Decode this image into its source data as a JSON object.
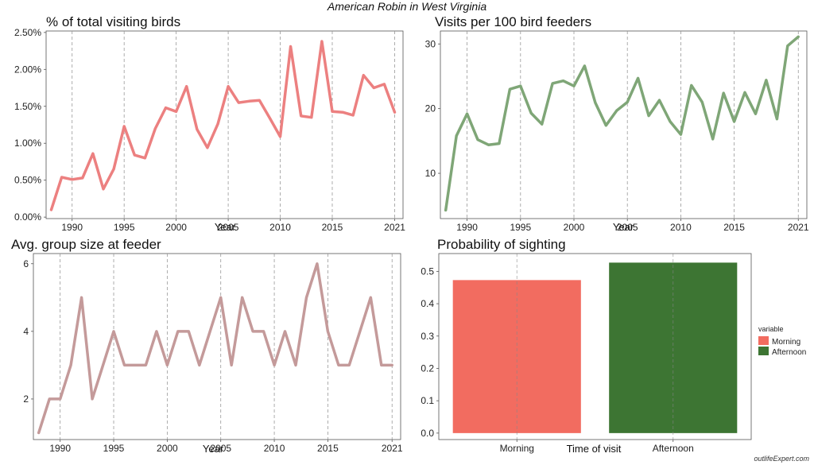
{
  "title": "American Robin in West Virginia",
  "watermark": "outlifeExpert.com",
  "chart_data": [
    {
      "type": "line",
      "title": "% of total visiting birds",
      "xlabel": "Year",
      "ylabel": "",
      "color": "#ec8080",
      "x": [
        1988,
        1989,
        1990,
        1991,
        1992,
        1993,
        1994,
        1995,
        1996,
        1997,
        1998,
        1999,
        2000,
        2001,
        2002,
        2003,
        2004,
        2005,
        2006,
        2007,
        2008,
        2009,
        2010,
        2011,
        2012,
        2013,
        2014,
        2015,
        2016,
        2017,
        2018,
        2019,
        2020,
        2021
      ],
      "y": [
        0.1,
        0.54,
        0.51,
        0.53,
        0.86,
        0.38,
        0.65,
        1.23,
        0.84,
        0.8,
        1.2,
        1.48,
        1.43,
        1.77,
        1.19,
        0.94,
        1.26,
        1.77,
        1.55,
        1.57,
        1.58,
        1.34,
        1.09,
        2.31,
        1.37,
        1.35,
        2.38,
        1.43,
        1.42,
        1.38,
        1.92,
        1.75,
        1.8,
        1.42
      ],
      "xlim": [
        1987.5,
        2021.8
      ],
      "ylim": [
        -0.02,
        2.52
      ],
      "xticks": [
        1990,
        1995,
        2000,
        2005,
        2010,
        2015,
        2021
      ],
      "yticks": [
        0,
        0.5,
        1.0,
        1.5,
        2.0,
        2.5
      ],
      "ytick_labels": [
        "0.00%",
        "0.50%",
        "1.00%",
        "1.50%",
        "2.00%",
        "2.50%"
      ],
      "grid": "vertical-dashed"
    },
    {
      "type": "line",
      "title": "Visits per 100 bird feeders",
      "xlabel": "Year",
      "ylabel": "",
      "color": "#7fa677",
      "x": [
        1988,
        1989,
        1990,
        1991,
        1992,
        1993,
        1994,
        1995,
        1996,
        1997,
        1998,
        1999,
        2000,
        2001,
        2002,
        2003,
        2004,
        2005,
        2006,
        2007,
        2008,
        2009,
        2010,
        2011,
        2012,
        2013,
        2014,
        2015,
        2016,
        2017,
        2018,
        2019,
        2020,
        2021
      ],
      "y": [
        4.3,
        15.8,
        19.2,
        15.2,
        14.4,
        14.6,
        23.0,
        23.5,
        19.3,
        17.6,
        23.9,
        24.3,
        23.5,
        26.6,
        20.9,
        17.4,
        19.7,
        21.0,
        24.7,
        18.9,
        21.3,
        18.0,
        16.0,
        23.6,
        21.0,
        15.3,
        22.4,
        18.0,
        22.5,
        19.2,
        24.4,
        18.4,
        29.7,
        31.1
      ],
      "xlim": [
        1987.5,
        2021.8
      ],
      "ylim": [
        3,
        32
      ],
      "xticks": [
        1990,
        1995,
        2000,
        2005,
        2010,
        2015,
        2021
      ],
      "yticks": [
        10,
        20,
        30
      ],
      "ytick_labels": [
        "10",
        "20",
        "30"
      ],
      "grid": "vertical-dashed"
    },
    {
      "type": "line",
      "title": "Avg. group size at feeder",
      "xlabel": "Year",
      "ylabel": "",
      "color": "#c49a9a",
      "x": [
        1988,
        1989,
        1990,
        1991,
        1992,
        1993,
        1994,
        1995,
        1996,
        1997,
        1998,
        1999,
        2000,
        2001,
        2002,
        2003,
        2004,
        2005,
        2006,
        2007,
        2008,
        2009,
        2010,
        2011,
        2012,
        2013,
        2014,
        2015,
        2016,
        2017,
        2018,
        2019,
        2020,
        2021
      ],
      "y": [
        1,
        2,
        2,
        3,
        5,
        2,
        3,
        4,
        3,
        3,
        3,
        4,
        3,
        4,
        4,
        3,
        4,
        5,
        3,
        5,
        4,
        4,
        3,
        4,
        3,
        5,
        6,
        4,
        3,
        3,
        4,
        5,
        3,
        3
      ],
      "xlim": [
        1987.5,
        2021.8
      ],
      "ylim": [
        0.8,
        6.3
      ],
      "xticks": [
        1990,
        1995,
        2000,
        2005,
        2010,
        2015,
        2021
      ],
      "yticks": [
        2,
        4,
        6
      ],
      "ytick_labels": [
        "2",
        "4",
        "6"
      ],
      "grid": "vertical-dashed"
    },
    {
      "type": "bar",
      "title": "Probability of sighting",
      "xlabel": "Time of visit",
      "ylabel": "",
      "categories": [
        "Morning",
        "Afternoon"
      ],
      "values": [
        0.473,
        0.527
      ],
      "colors": [
        "#f26c60",
        "#3d7533"
      ],
      "ylim": [
        -0.02,
        0.555
      ],
      "yticks": [
        0,
        0.1,
        0.2,
        0.3,
        0.4,
        0.5
      ],
      "ytick_labels": [
        "0.0",
        "0.1",
        "0.2",
        "0.3",
        "0.4",
        "0.5"
      ],
      "legend": {
        "title": "variable",
        "entries": [
          "Morning",
          "Afternoon"
        ],
        "placement": "right"
      },
      "grid": "vertical-dashed"
    }
  ]
}
